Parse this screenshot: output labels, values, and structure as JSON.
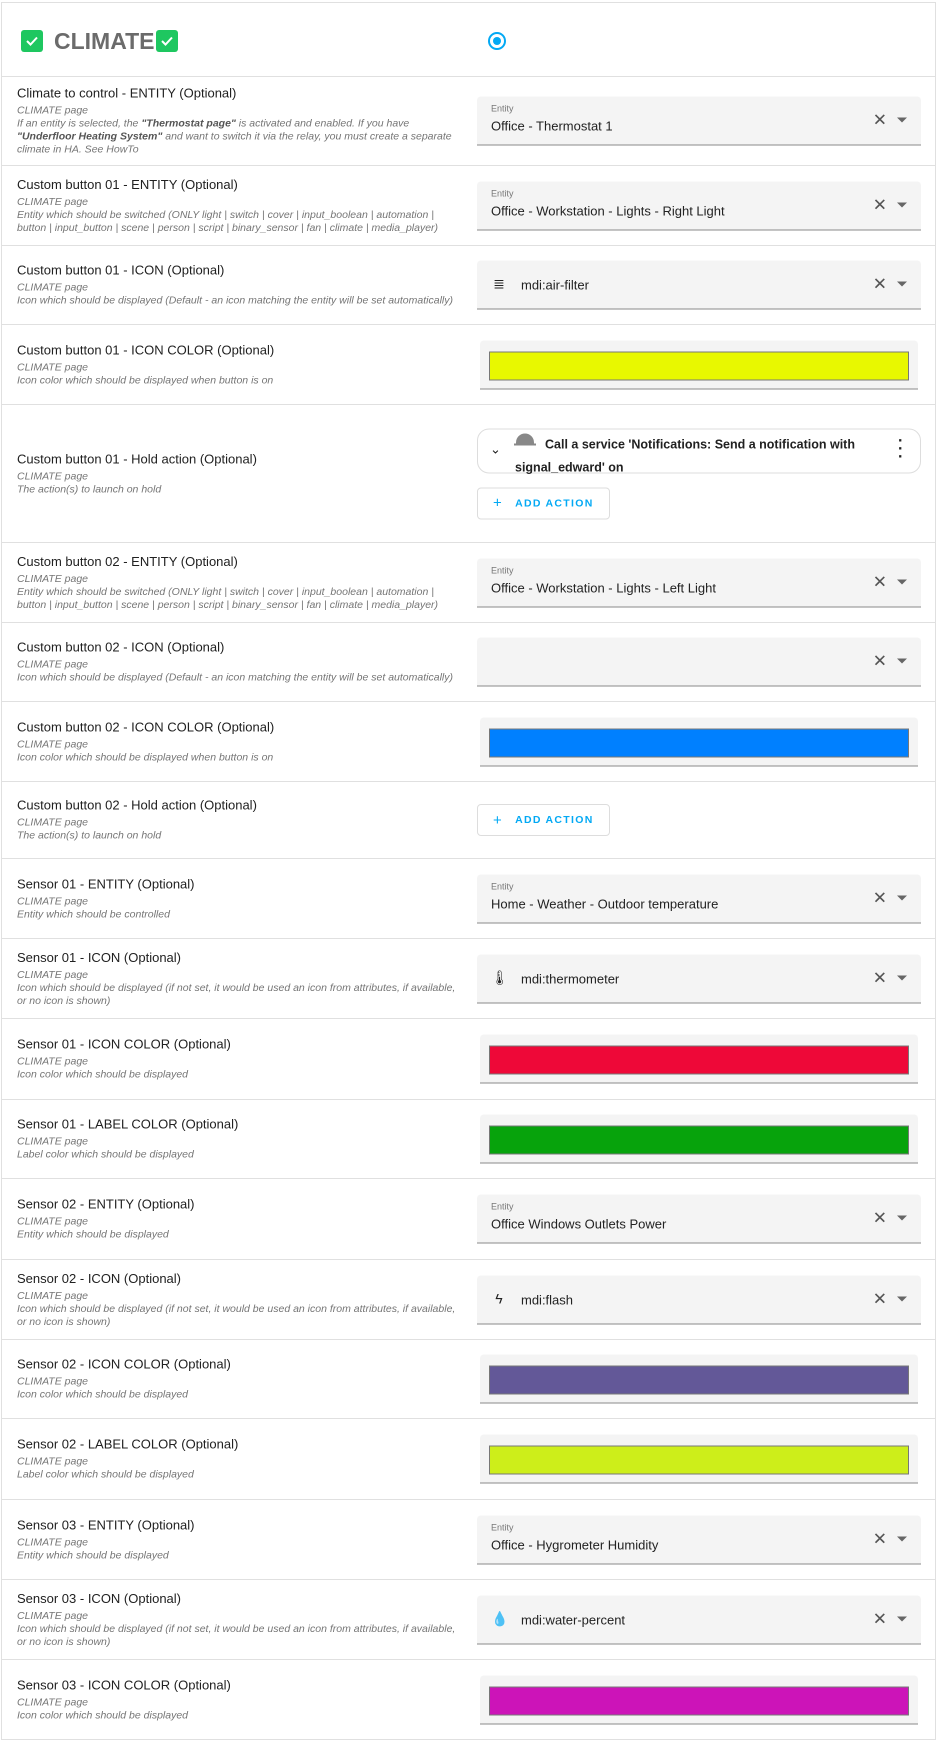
{
  "header": {
    "title": "CLIMATE",
    "radio_selected": true,
    "accent": "#03a9f4",
    "check_color": "#1ec760"
  },
  "rows": [
    {
      "label": "Climate to control - ENTITY (Optional)",
      "page": "CLIMATE page",
      "desc": [
        {
          "t": "If an entity is selected, the "
        },
        {
          "t": "\"Thermostat page\"",
          "b": true
        },
        {
          "t": " is activated and enabled. If you have "
        },
        {
          "t": "\"Underfloor Heating System\"",
          "b": true
        },
        {
          "t": " and want to switch it via the relay, you must create a separate climate in HA. See HowTo"
        }
      ],
      "type": "entity",
      "field_label": "Entity",
      "value": "Office - Thermostat 1"
    },
    {
      "label": "Custom button 01 - ENTITY (Optional)",
      "page": "CLIMATE page",
      "desc": [
        {
          "t": "Entity which should be switched (ONLY light | switch | cover | input_boolean | automation | button | input_button | scene | person | script | binary_sensor | fan | climate | media_player)"
        }
      ],
      "type": "entity",
      "field_label": "Entity",
      "value": "Office - Workstation - Lights - Right Light"
    },
    {
      "label": "Custom button 01 - ICON (Optional)",
      "page": "CLIMATE page",
      "desc": [
        {
          "t": "Icon which should be displayed (Default - an icon matching the entity will be set automatically)"
        }
      ],
      "type": "icon",
      "icon": "air-filter-icon",
      "glyph": "≣",
      "value": "mdi:air-filter"
    },
    {
      "label": "Custom button 01 - ICON COLOR (Optional)",
      "page": "CLIMATE page",
      "desc": [
        {
          "t": "Icon color which should be displayed when button is on"
        }
      ],
      "type": "color",
      "color": "#e8f800"
    },
    {
      "label": "Custom button 01 - Hold action (Optional)",
      "page": "CLIMATE page",
      "desc": [
        {
          "t": "The action(s) to launch on hold"
        }
      ],
      "type": "action",
      "action_text": "Call a service 'Notifications: Send a notification with signal_edward' on",
      "add_label": "ADD ACTION"
    },
    {
      "label": "Custom button 02 - ENTITY (Optional)",
      "page": "CLIMATE page",
      "desc": [
        {
          "t": "Entity which should be switched (ONLY light | switch | cover | input_boolean | automation | button | input_button | scene | person | script | binary_sensor | fan | climate | media_player)"
        }
      ],
      "type": "entity",
      "field_label": "Entity",
      "value": "Office - Workstation - Lights - Left Light"
    },
    {
      "label": "Custom button 02 - ICON (Optional)",
      "page": "CLIMATE page",
      "desc": [
        {
          "t": "Icon which should be displayed (Default - an icon matching the entity will be set automatically)"
        }
      ],
      "type": "icon",
      "value": ""
    },
    {
      "label": "Custom button 02 - ICON COLOR (Optional)",
      "page": "CLIMATE page",
      "desc": [
        {
          "t": "Icon color which should be displayed when button is on"
        }
      ],
      "type": "color",
      "color": "#0080ff"
    },
    {
      "label": "Custom button 02 - Hold action (Optional)",
      "page": "CLIMATE page",
      "desc": [
        {
          "t": "The action(s) to launch on hold"
        }
      ],
      "type": "action",
      "add_label": "ADD ACTION"
    },
    {
      "label": "Sensor 01 - ENTITY (Optional)",
      "page": "CLIMATE page",
      "desc": [
        {
          "t": "Entity which should be controlled"
        }
      ],
      "type": "entity",
      "field_label": "Entity",
      "value": "Home - Weather - Outdoor temperature"
    },
    {
      "label": "Sensor 01 - ICON (Optional)",
      "page": "CLIMATE page",
      "desc": [
        {
          "t": "Icon which should be displayed (if not set, it would be used an icon from attributes, if available, or no icon is shown)"
        }
      ],
      "type": "icon",
      "icon": "thermometer-icon",
      "glyph": "🌡",
      "value": "mdi:thermometer"
    },
    {
      "label": "Sensor 01 - ICON COLOR (Optional)",
      "page": "CLIMATE page",
      "desc": [
        {
          "t": "Icon color which should be displayed"
        }
      ],
      "type": "color",
      "color": "#ee0838"
    },
    {
      "label": "Sensor 01 - LABEL COLOR (Optional)",
      "page": "CLIMATE page",
      "desc": [
        {
          "t": "Label color which should be displayed"
        }
      ],
      "type": "color",
      "color": "#07a30c"
    },
    {
      "label": "Sensor 02 - ENTITY (Optional)",
      "page": "CLIMATE page",
      "desc": [
        {
          "t": "Entity which should be displayed"
        }
      ],
      "type": "entity",
      "field_label": "Entity",
      "value": "Office Windows Outlets Power"
    },
    {
      "label": "Sensor 02 - ICON (Optional)",
      "page": "CLIMATE page",
      "desc": [
        {
          "t": "Icon which should be displayed (if not set, it would be used an icon from attributes, if available, or no icon is shown)"
        }
      ],
      "type": "icon",
      "icon": "flash-icon",
      "glyph": "ϟ",
      "value": "mdi:flash"
    },
    {
      "label": "Sensor 02 - ICON COLOR (Optional)",
      "page": "CLIMATE page",
      "desc": [
        {
          "t": "Icon color which should be displayed"
        }
      ],
      "type": "color",
      "color": "#635898"
    },
    {
      "label": "Sensor 02 - LABEL COLOR (Optional)",
      "page": "CLIMATE page",
      "desc": [
        {
          "t": "Label color which should be displayed"
        }
      ],
      "type": "color",
      "color": "#cdee1a"
    },
    {
      "label": "Sensor 03 - ENTITY (Optional)",
      "page": "CLIMATE page",
      "desc": [
        {
          "t": "Entity which should be displayed"
        }
      ],
      "type": "entity",
      "field_label": "Entity",
      "value": "Office - Hygrometer Humidity"
    },
    {
      "label": "Sensor 03 - ICON (Optional)",
      "page": "CLIMATE page",
      "desc": [
        {
          "t": "Icon which should be displayed (if not set, it would be used an icon from attributes, if available, or no icon is shown)"
        }
      ],
      "type": "icon",
      "icon": "water-percent-icon",
      "glyph": "💧",
      "value": "mdi:water-percent"
    },
    {
      "label": "Sensor 03 - ICON COLOR (Optional)",
      "page": "CLIMATE page",
      "desc": [
        {
          "t": "Icon color which should be displayed"
        }
      ],
      "type": "color",
      "color": "#cc14b8"
    }
  ]
}
